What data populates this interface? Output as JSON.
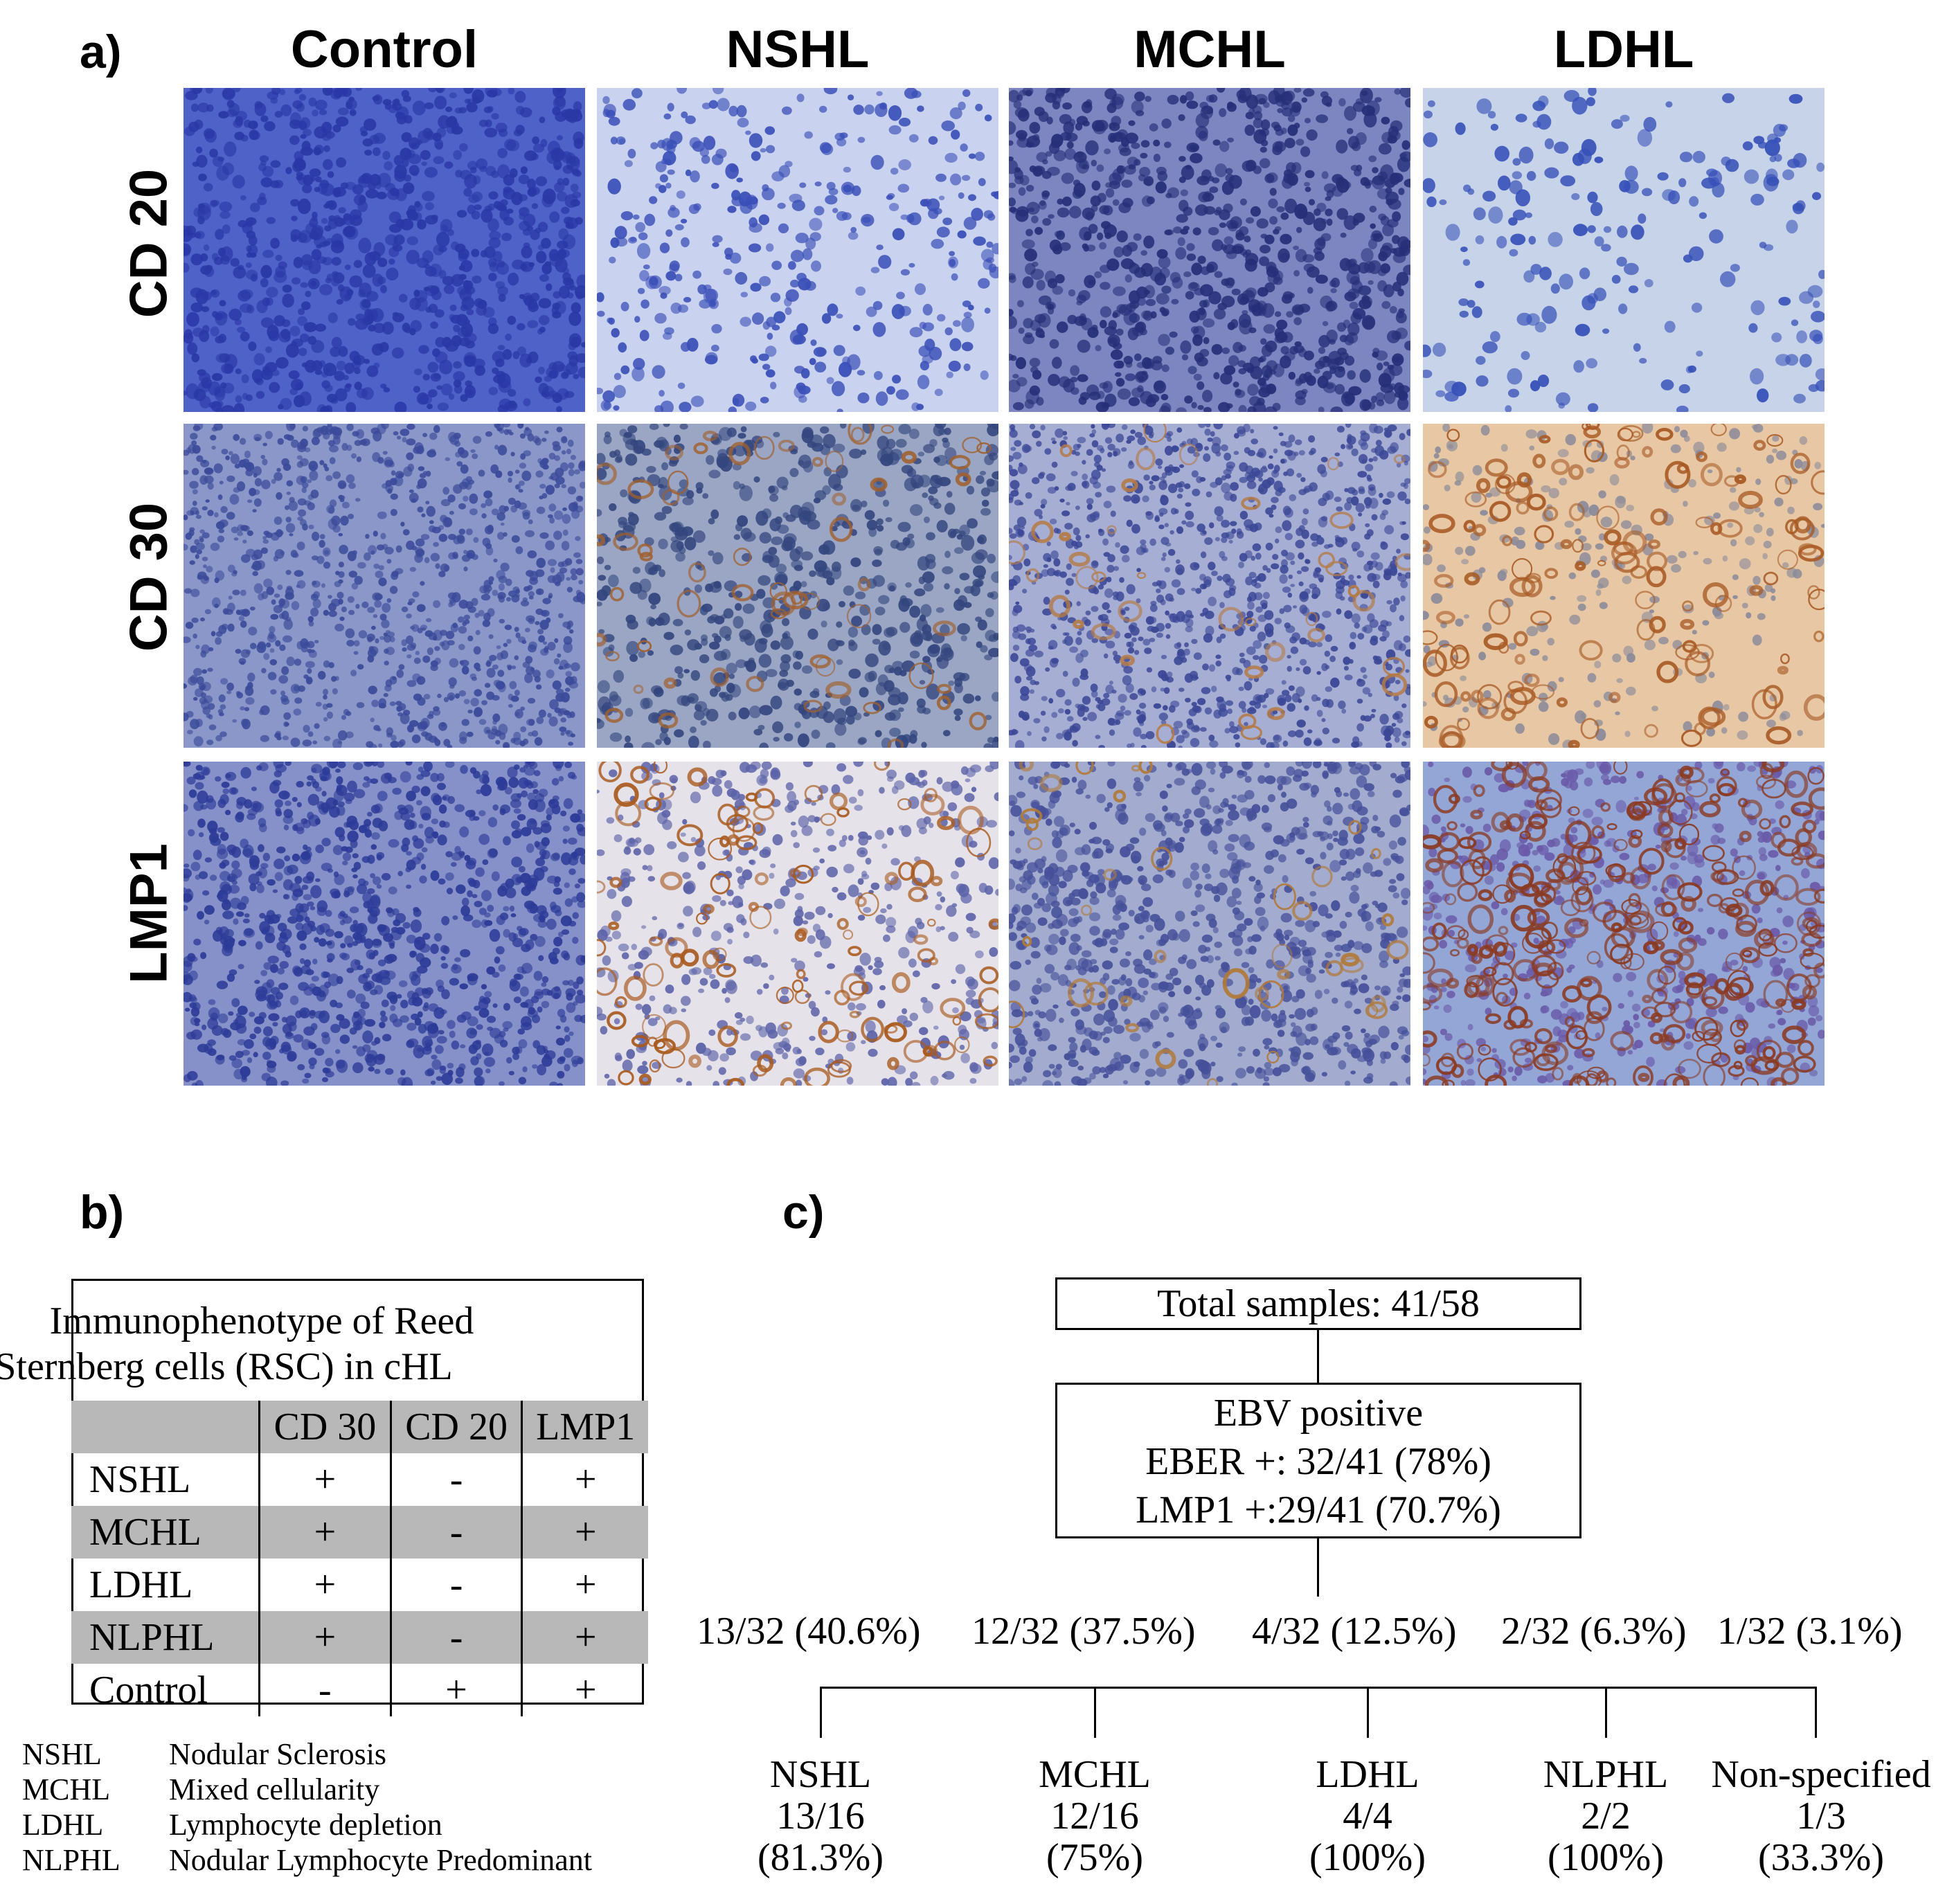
{
  "panel_a": {
    "letter": "a)",
    "columns": [
      "Control",
      "NSHL",
      "MCHL",
      "LDHL"
    ],
    "rows": [
      "CD 20",
      "CD 30",
      "LMP1"
    ]
  },
  "panel_b": {
    "letter": "b)",
    "table_title_line1": "Immunophenotype of Reed",
    "table_title_line2": "Sternberg cells (RSC) in cHL",
    "headers": [
      "",
      "CD 30",
      "CD 20",
      "LMP1"
    ],
    "rows": [
      {
        "name": "NSHL",
        "cd30": "+",
        "cd20": "-",
        "lmp1": "+"
      },
      {
        "name": "MCHL",
        "cd30": "+",
        "cd20": "-",
        "lmp1": "+"
      },
      {
        "name": "LDHL",
        "cd30": "+",
        "cd20": "-",
        "lmp1": "+"
      },
      {
        "name": "NLPHL",
        "cd30": "+",
        "cd20": "-",
        "lmp1": "+"
      },
      {
        "name": "Control",
        "cd30": "-",
        "cd20": "+",
        "lmp1": "+"
      }
    ],
    "legend": [
      {
        "abbr": "NSHL",
        "full": "Nodular Sclerosis"
      },
      {
        "abbr": "MCHL",
        "full": "Mixed cellularity"
      },
      {
        "abbr": "LDHL",
        "full": "Lymphocyte depletion"
      },
      {
        "abbr": "NLPHL",
        "full": "Nodular Lymphocyte Predominant"
      }
    ]
  },
  "panel_c": {
    "letter": "c)",
    "total": "Total samples: 41/58",
    "ebv_line1": "EBV positive",
    "ebv_line2": "EBER +: 32/41 (78%)",
    "ebv_line3": "LMP1 +:29/41 (70.7%)",
    "percentages": [
      "13/32 (40.6%)",
      "12/32 (37.5%)",
      "4/32 (12.5%)",
      "2/32 (6.3%)",
      "1/32 (3.1%)"
    ],
    "leaves": [
      {
        "name": "NSHL",
        "ratio": "13/16",
        "pct": "(81.3%)"
      },
      {
        "name": "MCHL",
        "ratio": "12/16",
        "pct": "(75%)"
      },
      {
        "name": "LDHL",
        "ratio": "4/4",
        "pct": "(100%)"
      },
      {
        "name": "NLPHL",
        "ratio": "2/2",
        "pct": "(100%)"
      },
      {
        "name": "Non-specified",
        "ratio": "1/3",
        "pct": "(33.3%)"
      }
    ]
  },
  "colors": {
    "hematoxylin_light": "#7f8fd0",
    "hematoxylin_dark": "#2b3b9c",
    "dab_brown": "#b06a2e",
    "table_grey": "#b8b8b8"
  }
}
